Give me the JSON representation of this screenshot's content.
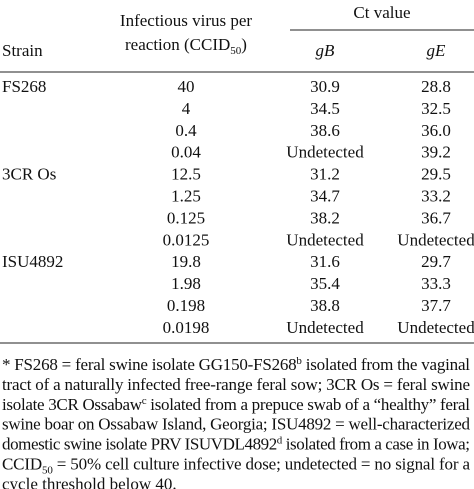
{
  "table": {
    "header": {
      "strain": "Strain",
      "virus": [
        "Infectious virus per",
        "reaction (CCID",
        "50",
        ")"
      ],
      "ct": "Ct value",
      "gb": "gB",
      "ge": "gE"
    },
    "rows": [
      [
        "FS268",
        "40",
        "30.9",
        "28.8"
      ],
      [
        null,
        "4",
        "34.5",
        "32.5"
      ],
      [
        null,
        "0.4",
        "38.6",
        "36.0"
      ],
      [
        null,
        "0.04",
        "Undetected",
        "39.2"
      ],
      [
        "3CR Os",
        "12.5",
        "31.2",
        "29.5"
      ],
      [
        null,
        "1.25",
        "34.7",
        "33.2"
      ],
      [
        null,
        "0.125",
        "38.2",
        "36.7"
      ],
      [
        null,
        "0.0125",
        "Undetected",
        "Undetected"
      ],
      [
        "ISU4892",
        "19.8",
        "31.6",
        "29.7"
      ],
      [
        null,
        "1.98",
        "35.4",
        "33.3"
      ],
      [
        null,
        "0.198",
        "38.8",
        "37.7"
      ],
      [
        null,
        "0.0198",
        "Undetected",
        "Undetected"
      ]
    ]
  },
  "footnote": [
    [
      {
        "text": "* FS268 = feral swine isolate GG150-FS268"
      },
      {
        "sup": "b"
      },
      {
        "text": " isolated from the vaginal"
      }
    ],
    [
      {
        "text": "tract of a naturally infected free-range feral sow; 3CR Os = feral swine"
      }
    ],
    [
      {
        "text": "isolate 3CR Ossabaw"
      },
      {
        "sup": "c"
      },
      {
        "text": " isolated from a prepuce swab of a “healthy” feral"
      }
    ],
    [
      {
        "text": "swine boar on Ossabaw Island, Georgia; ISU4892 = well-characterized"
      }
    ],
    [
      {
        "text": "domestic swine isolate PRV ISUVDL4892"
      },
      {
        "sup": "d"
      },
      {
        "text": " isolated from a case in Iowa;"
      }
    ],
    [
      {
        "text": "CCID"
      },
      {
        "sub": "50"
      },
      {
        "text": " = 50% cell culture infective dose; undetected = no signal for a"
      }
    ],
    [
      {
        "text": "cycle threshold below 40."
      }
    ]
  ]
}
